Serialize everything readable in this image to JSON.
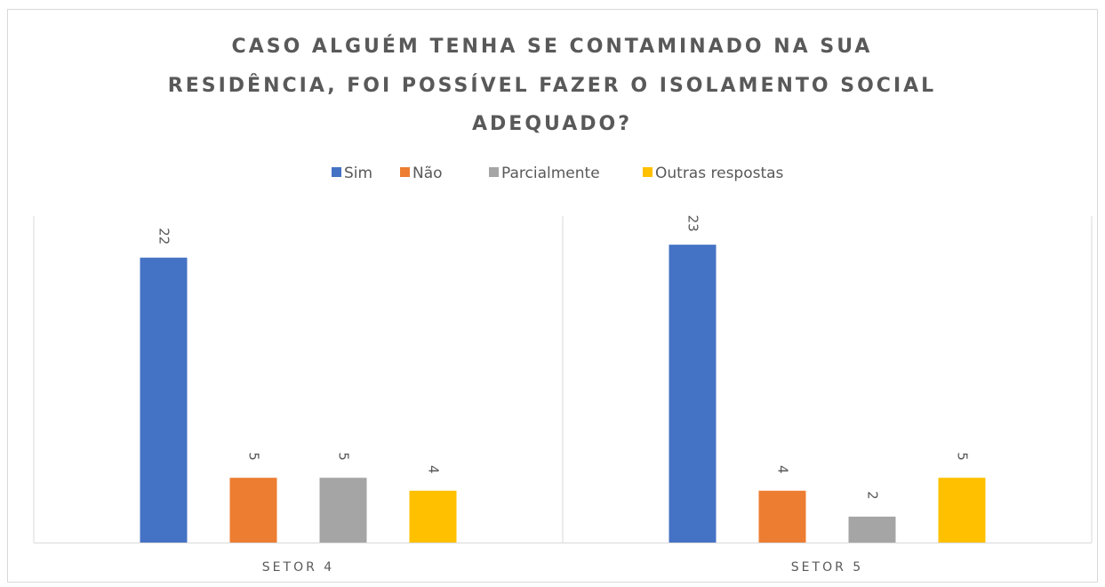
{
  "chart_data": {
    "type": "bar",
    "title": [
      "CASO ALGUÉM TENHA SE CONTAMINADO NA SUA",
      "RESIDÊNCIA, FOI POSSÍVEL FAZER O ISOLAMENTO SOCIAL",
      "ADEQUADO?"
    ],
    "categories": [
      "SETOR 4",
      "SETOR 5"
    ],
    "series": [
      {
        "name": "Sim",
        "color": "#4472c4",
        "values": [
          22,
          23
        ]
      },
      {
        "name": "Não",
        "color": "#ed7d31",
        "values": [
          5,
          4
        ]
      },
      {
        "name": "Parcialmente",
        "color": "#a5a5a5",
        "values": [
          5,
          2
        ]
      },
      {
        "name": "Outras respostas",
        "color": "#ffc000",
        "values": [
          4,
          5
        ]
      }
    ],
    "ylim": [
      0,
      25
    ],
    "legend": "top"
  }
}
